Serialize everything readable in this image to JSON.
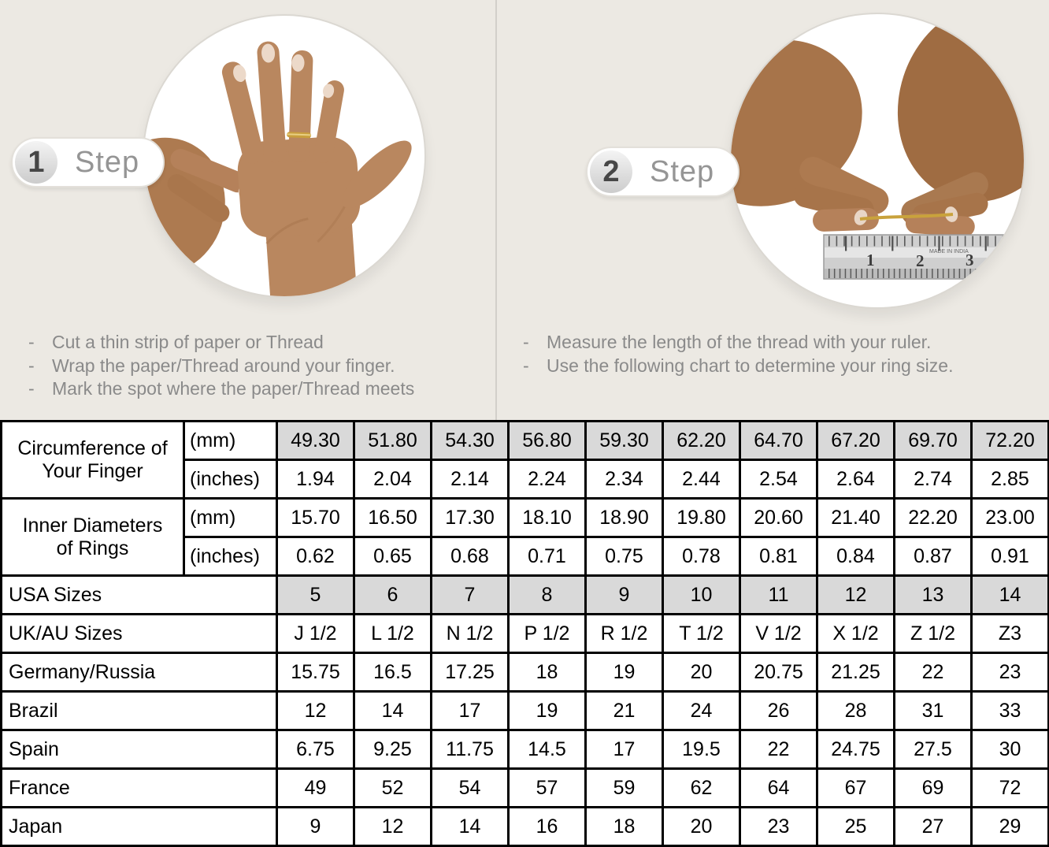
{
  "colors": {
    "top_background": "#ece9e3",
    "shaded_cell": "#d9d9d9",
    "table_border": "#000000",
    "step_text": "#959595",
    "bullet_text": "#8a8a8a",
    "gold_thread": "#c9a23c"
  },
  "bullet_marker": "-",
  "steps": [
    {
      "number": "1",
      "label": "Step",
      "bullets": [
        "Cut a thin strip of paper or Thread",
        "Wrap the paper/Thread around your finger.",
        "Mark the spot where the paper/Thread meets"
      ]
    },
    {
      "number": "2",
      "label": "Step",
      "bullets": [
        "Measure the length of the thread with your ruler.",
        "Use the following chart to determine your ring size."
      ]
    }
  ],
  "ruler": {
    "numbers": [
      "1",
      "2",
      "3"
    ],
    "made_in": "MADE IN INDIA"
  },
  "table": {
    "rows": [
      {
        "group": "Circumference of Your Finger",
        "group_span": 2,
        "unit": "(mm)",
        "shaded": true,
        "values": [
          "49.30",
          "51.80",
          "54.30",
          "56.80",
          "59.30",
          "62.20",
          "64.70",
          "67.20",
          "69.70",
          "72.20"
        ]
      },
      {
        "unit": "(inches)",
        "shaded": false,
        "values": [
          "1.94",
          "2.04",
          "2.14",
          "2.24",
          "2.34",
          "2.44",
          "2.54",
          "2.64",
          "2.74",
          "2.85"
        ]
      },
      {
        "group": "Inner Diameters of Rings",
        "group_span": 2,
        "unit": "(mm)",
        "shaded": false,
        "values": [
          "15.70",
          "16.50",
          "17.30",
          "18.10",
          "18.90",
          "19.80",
          "20.60",
          "21.40",
          "22.20",
          "23.00"
        ]
      },
      {
        "unit": "(inches)",
        "shaded": false,
        "values": [
          "0.62",
          "0.65",
          "0.68",
          "0.71",
          "0.75",
          "0.78",
          "0.81",
          "0.84",
          "0.87",
          "0.91"
        ]
      },
      {
        "label": "USA Sizes",
        "shaded": true,
        "values": [
          "5",
          "6",
          "7",
          "8",
          "9",
          "10",
          "11",
          "12",
          "13",
          "14"
        ]
      },
      {
        "label": "UK/AU Sizes",
        "shaded": false,
        "values": [
          "J 1/2",
          "L 1/2",
          "N 1/2",
          "P 1/2",
          "R 1/2",
          "T 1/2",
          "V 1/2",
          "X 1/2",
          "Z 1/2",
          "Z3"
        ]
      },
      {
        "label": "Germany/Russia",
        "shaded": false,
        "values": [
          "15.75",
          "16.5",
          "17.25",
          "18",
          "19",
          "20",
          "20.75",
          "21.25",
          "22",
          "23"
        ]
      },
      {
        "label": "Brazil",
        "shaded": false,
        "values": [
          "12",
          "14",
          "17",
          "19",
          "21",
          "24",
          "26",
          "28",
          "31",
          "33"
        ]
      },
      {
        "label": "Spain",
        "shaded": false,
        "values": [
          "6.75",
          "9.25",
          "11.75",
          "14.5",
          "17",
          "19.5",
          "22",
          "24.75",
          "27.5",
          "30"
        ]
      },
      {
        "label": "France",
        "shaded": false,
        "values": [
          "49",
          "52",
          "54",
          "57",
          "59",
          "62",
          "64",
          "67",
          "69",
          "72"
        ]
      },
      {
        "label": "Japan",
        "shaded": false,
        "values": [
          "9",
          "12",
          "14",
          "16",
          "18",
          "20",
          "23",
          "25",
          "27",
          "29"
        ]
      }
    ]
  }
}
